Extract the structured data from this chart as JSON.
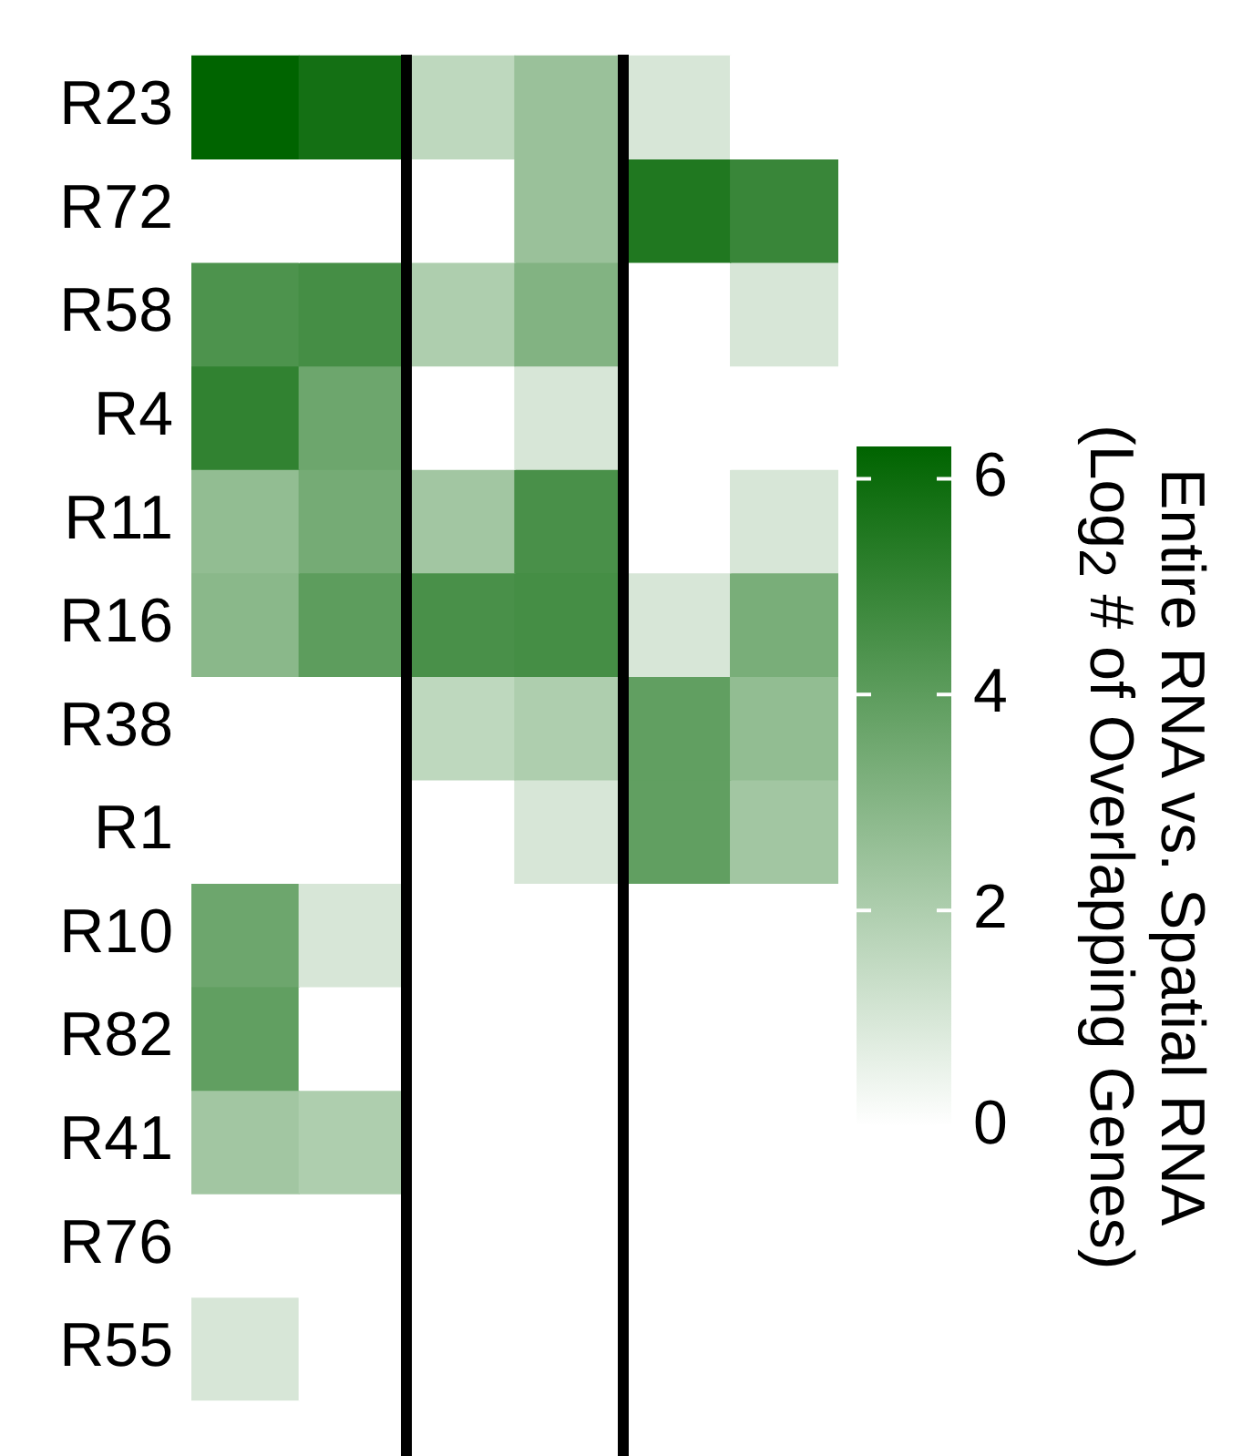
{
  "chart_data": {
    "type": "heatmap",
    "categories": [
      null,
      null,
      null,
      null,
      null,
      null
    ],
    "y_categories": [
      "R23",
      "R72",
      "R58",
      "R4",
      "R11",
      "R16",
      "R38",
      "R1",
      "R10",
      "R82",
      "R41",
      "R76",
      "R55"
    ],
    "cells": [
      [
        6.3,
        5.8,
        1.6,
        2.5,
        1.0,
        null
      ],
      [
        null,
        null,
        null,
        2.5,
        5.5,
        4.9
      ],
      [
        4.4,
        4.6,
        2.0,
        3.1,
        null,
        1.0
      ],
      [
        5.1,
        3.6,
        null,
        1.0,
        null,
        null
      ],
      [
        2.7,
        3.4,
        2.3,
        4.5,
        null,
        1.0
      ],
      [
        2.9,
        4.0,
        4.5,
        4.6,
        1.0,
        3.3
      ],
      [
        null,
        null,
        1.6,
        2.0,
        3.9,
        2.7
      ],
      [
        null,
        null,
        null,
        1.0,
        3.9,
        2.3
      ],
      [
        3.6,
        1.0,
        null,
        null,
        null,
        null
      ],
      [
        3.9,
        null,
        null,
        null,
        null,
        null
      ],
      [
        2.3,
        2.0,
        null,
        null,
        null,
        null
      ],
      [
        null,
        null,
        null,
        null,
        null,
        null
      ],
      [
        1.0,
        null,
        null,
        null,
        null,
        null
      ]
    ],
    "color": "#006400",
    "clim": [
      0,
      6.3
    ],
    "cticks": [
      0,
      2,
      4,
      6
    ],
    "clabel": "Entire RNA vs. Spatial RNA (Log$_{2}$ # of Overlapping Genes)",
    "tick_labels": "y",
    "legend": false
  }
}
